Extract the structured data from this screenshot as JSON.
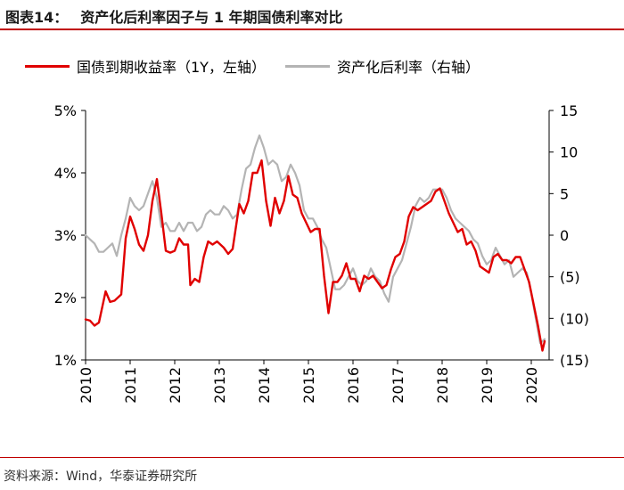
{
  "header": {
    "figure_no": "图表14：",
    "title": "资产化后利率因子与 1 年期国债利率对比"
  },
  "footer": {
    "source": "资料来源：Wind，华泰证券研究所"
  },
  "chart_data": {
    "type": "line",
    "title": "资产化后利率因子与 1 年期国债利率对比",
    "legend_position": "top",
    "x_axis": {
      "ticks": [
        "2010",
        "2011",
        "2012",
        "2013",
        "2014",
        "2015",
        "2016",
        "2017",
        "2018",
        "2019",
        "2020"
      ],
      "range": [
        2010,
        2020.6
      ]
    },
    "y_left": {
      "ticks": [
        "1%",
        "2%",
        "3%",
        "4%",
        "5%"
      ],
      "range": [
        1,
        5
      ],
      "unit": "%"
    },
    "y_right": {
      "ticks": [
        "(15)",
        "(10)",
        "(5)",
        "0",
        "5",
        "10",
        "15"
      ],
      "range": [
        -15,
        15
      ]
    },
    "series": [
      {
        "name": "国债到期收益率（1Y，左轴）",
        "axis": "left",
        "color": "#e00000",
        "x": [
          2010.0,
          2010.1,
          2010.2,
          2010.3,
          2010.45,
          2010.55,
          2010.65,
          2010.8,
          2010.9,
          2011.0,
          2011.1,
          2011.2,
          2011.3,
          2011.4,
          2011.5,
          2011.6,
          2011.7,
          2011.8,
          2011.9,
          2012.0,
          2012.1,
          2012.2,
          2012.3,
          2012.35,
          2012.45,
          2012.55,
          2012.65,
          2012.75,
          2012.85,
          2012.95,
          2013.1,
          2013.2,
          2013.3,
          2013.45,
          2013.55,
          2013.65,
          2013.75,
          2013.85,
          2013.95,
          2014.05,
          2014.15,
          2014.25,
          2014.35,
          2014.45,
          2014.55,
          2014.65,
          2014.75,
          2014.85,
          2014.95,
          2015.05,
          2015.15,
          2015.25,
          2015.35,
          2015.45,
          2015.55,
          2015.65,
          2015.75,
          2015.85,
          2015.95,
          2016.05,
          2016.15,
          2016.25,
          2016.35,
          2016.45,
          2016.55,
          2016.65,
          2016.75,
          2016.85,
          2016.95,
          2017.05,
          2017.15,
          2017.25,
          2017.35,
          2017.45,
          2017.55,
          2017.65,
          2017.75,
          2017.85,
          2017.95,
          2018.05,
          2018.15,
          2018.25,
          2018.35,
          2018.45,
          2018.55,
          2018.65,
          2018.75,
          2018.85,
          2018.95,
          2019.05,
          2019.15,
          2019.25,
          2019.35,
          2019.45,
          2019.55,
          2019.65,
          2019.75,
          2019.85,
          2019.95,
          2020.05,
          2020.15,
          2020.25,
          2020.3
        ],
        "y": [
          1.65,
          1.63,
          1.55,
          1.6,
          2.1,
          1.93,
          1.95,
          2.05,
          2.95,
          3.3,
          3.1,
          2.85,
          2.75,
          3.0,
          3.55,
          3.9,
          3.35,
          2.75,
          2.72,
          2.75,
          2.95,
          2.85,
          2.85,
          2.2,
          2.3,
          2.25,
          2.65,
          2.9,
          2.85,
          2.9,
          2.8,
          2.7,
          2.78,
          3.5,
          3.35,
          3.55,
          4.0,
          4.0,
          4.2,
          3.55,
          3.15,
          3.6,
          3.35,
          3.55,
          3.95,
          3.65,
          3.6,
          3.35,
          3.2,
          3.05,
          3.1,
          3.1,
          2.35,
          1.75,
          2.25,
          2.25,
          2.35,
          2.55,
          2.3,
          2.3,
          2.1,
          2.35,
          2.3,
          2.35,
          2.25,
          2.15,
          2.2,
          2.45,
          2.65,
          2.7,
          2.9,
          3.3,
          3.45,
          3.4,
          3.45,
          3.5,
          3.55,
          3.7,
          3.75,
          3.55,
          3.35,
          3.2,
          3.05,
          3.1,
          2.85,
          2.9,
          2.75,
          2.5,
          2.45,
          2.4,
          2.65,
          2.7,
          2.6,
          2.6,
          2.55,
          2.65,
          2.65,
          2.45,
          2.25,
          1.9,
          1.55,
          1.15,
          1.3
        ]
      },
      {
        "name": "资产化后利率（右轴）",
        "axis": "right",
        "color": "#b4b4b4",
        "x": [
          2010.0,
          2010.1,
          2010.2,
          2010.3,
          2010.4,
          2010.5,
          2010.6,
          2010.7,
          2010.8,
          2010.9,
          2011.0,
          2011.1,
          2011.2,
          2011.3,
          2011.4,
          2011.5,
          2011.6,
          2011.7,
          2011.8,
          2011.9,
          2012.0,
          2012.1,
          2012.2,
          2012.3,
          2012.4,
          2012.5,
          2012.6,
          2012.7,
          2012.8,
          2012.9,
          2013.0,
          2013.1,
          2013.2,
          2013.3,
          2013.4,
          2013.5,
          2013.6,
          2013.7,
          2013.8,
          2013.9,
          2014.0,
          2014.1,
          2014.2,
          2014.3,
          2014.4,
          2014.5,
          2014.6,
          2014.7,
          2014.8,
          2014.9,
          2015.0,
          2015.1,
          2015.2,
          2015.3,
          2015.4,
          2015.5,
          2015.6,
          2015.7,
          2015.8,
          2015.9,
          2016.0,
          2016.1,
          2016.2,
          2016.3,
          2016.4,
          2016.5,
          2016.6,
          2016.7,
          2016.8,
          2016.9,
          2017.0,
          2017.1,
          2017.2,
          2017.3,
          2017.4,
          2017.5,
          2017.6,
          2017.7,
          2017.8,
          2017.9,
          2018.0,
          2018.1,
          2018.2,
          2018.3,
          2018.4,
          2018.5,
          2018.6,
          2018.7,
          2018.8,
          2018.9,
          2019.0,
          2019.1,
          2019.2,
          2019.3,
          2019.4,
          2019.5,
          2019.6,
          2019.7,
          2019.8,
          2019.9,
          2020.0,
          2020.1,
          2020.2,
          2020.3
        ],
        "y": [
          0,
          -0.5,
          -1.0,
          -2.0,
          -2.0,
          -1.5,
          -1.0,
          -2.5,
          0,
          2.0,
          4.5,
          3.5,
          3.0,
          3.5,
          5.0,
          6.5,
          4.5,
          1.0,
          1.5,
          0.5,
          0.5,
          1.5,
          0.5,
          1.5,
          1.5,
          0.5,
          1.0,
          2.5,
          3.0,
          2.5,
          2.5,
          3.5,
          3.0,
          2.0,
          2.5,
          5.5,
          8.0,
          8.5,
          10.5,
          12.0,
          10.5,
          8.5,
          9.0,
          8.5,
          6.5,
          7.0,
          8.5,
          7.5,
          6.0,
          3.0,
          2.0,
          2.0,
          1.0,
          -0.5,
          -1.5,
          -4.0,
          -6.5,
          -6.5,
          -6.0,
          -5.0,
          -4.0,
          -5.5,
          -6.0,
          -5.5,
          -4.0,
          -5.0,
          -5.5,
          -7.0,
          -8.0,
          -5.0,
          -4.0,
          -3.0,
          -1.0,
          1.0,
          3.5,
          4.5,
          4.0,
          4.5,
          5.5,
          5.5,
          5.5,
          4.5,
          3.0,
          2.0,
          1.5,
          1.0,
          0.5,
          -0.5,
          -1.0,
          -2.5,
          -3.5,
          -3.0,
          -1.5,
          -2.5,
          -3.5,
          -3.0,
          -5.0,
          -4.5,
          -4.0,
          -4.5,
          -7.0,
          -10.0,
          -13.0,
          -12.5
        ]
      }
    ]
  }
}
